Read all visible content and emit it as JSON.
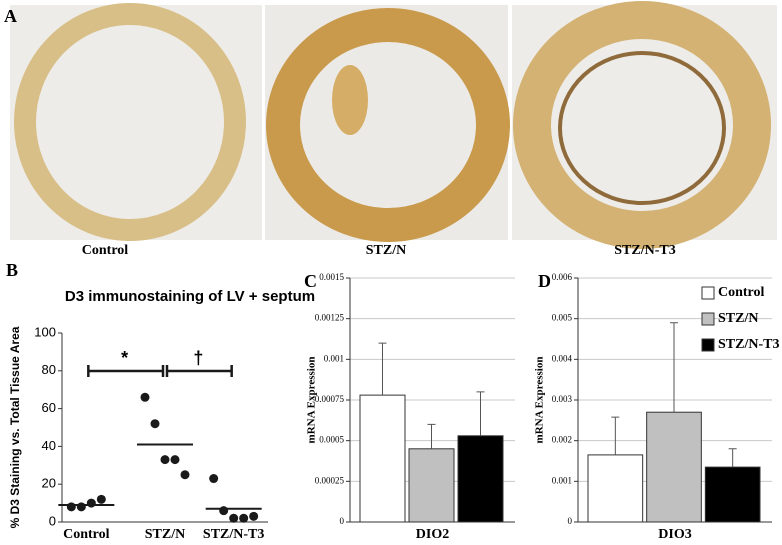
{
  "panel_a": {
    "label": "A",
    "captions": [
      "Control",
      "STZ/N",
      "STZ/N-T3"
    ]
  },
  "chart_data": [
    {
      "type": "strip",
      "label": "B",
      "title": "D3 immunostaining of LV + septum",
      "y_label": "% D3 Staining vs. Total Tissue Area",
      "categories": [
        "Control",
        "STZ/N",
        "STZ/N-T3"
      ],
      "values": [
        [
          8,
          8,
          10,
          12
        ],
        [
          66,
          52,
          33,
          33,
          25
        ],
        [
          23,
          6,
          2,
          2,
          3
        ]
      ],
      "medians": [
        9,
        41,
        7
      ],
      "annotations": [
        "*",
        "†"
      ],
      "color": "#1a1a1a",
      "ylim": [
        0,
        100
      ],
      "yticks": [
        0,
        20,
        40,
        60,
        80,
        100
      ],
      "grid": false
    },
    {
      "type": "bar",
      "label": "C",
      "y_label": "mRNA Expression",
      "categories": [
        "DIO2"
      ],
      "series": [
        {
          "color": "#ffffff",
          "values": [
            0.00078
          ],
          "errors": [
            0.00032
          ]
        },
        {
          "color": "#c0c0c0",
          "values": [
            0.00045
          ],
          "errors": [
            0.00015
          ]
        },
        {
          "color": "#000000",
          "values": [
            0.00053
          ],
          "errors": [
            0.00027
          ]
        }
      ],
      "ylim": [
        0,
        0.0015
      ],
      "yticks": [
        0,
        0.00025,
        0.0005,
        0.00075,
        0.001,
        0.00125,
        0.0015
      ],
      "grid": true
    },
    {
      "type": "bar",
      "label": "D",
      "y_label": "mRNA Expression",
      "categories": [
        "DIO3"
      ],
      "series": [
        {
          "name": "Control",
          "color": "#ffffff",
          "values": [
            0.00165
          ],
          "errors": [
            0.00093
          ]
        },
        {
          "name": "STZ/N",
          "color": "#c0c0c0",
          "values": [
            0.0027
          ],
          "errors": [
            0.0022
          ]
        },
        {
          "name": "STZ/N-T3",
          "color": "#000000",
          "values": [
            0.00135
          ],
          "errors": [
            0.00045
          ]
        }
      ],
      "ylim": [
        0,
        0.006
      ],
      "yticks": [
        0,
        0.001,
        0.002,
        0.003,
        0.004,
        0.005,
        0.006
      ],
      "grid": true,
      "legend": "top-right"
    }
  ]
}
